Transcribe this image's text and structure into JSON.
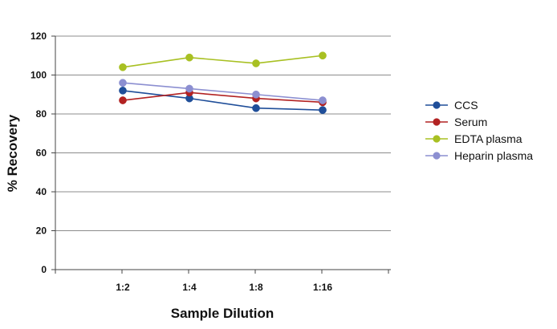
{
  "chart_data": {
    "type": "line",
    "title": "",
    "xlabel": "Sample Dilution",
    "ylabel": "% Recovery",
    "categories": [
      "1:2",
      "1:4",
      "1:8",
      "1:16"
    ],
    "ylim": [
      0,
      120
    ],
    "yticks": [
      0,
      20,
      40,
      60,
      80,
      100,
      120
    ],
    "grid": true,
    "legend": "right",
    "series": [
      {
        "name": "CCS",
        "color": "#1f4e99",
        "values": [
          92,
          88,
          83,
          82
        ]
      },
      {
        "name": "Serum",
        "color": "#b22222",
        "values": [
          87,
          91,
          88,
          86
        ]
      },
      {
        "name": "EDTA plasma",
        "color": "#a8c022",
        "values": [
          104,
          109,
          106,
          110
        ]
      },
      {
        "name": "Heparin plasma",
        "color": "#8c8fd1",
        "values": [
          96,
          93,
          90,
          87
        ]
      }
    ]
  }
}
